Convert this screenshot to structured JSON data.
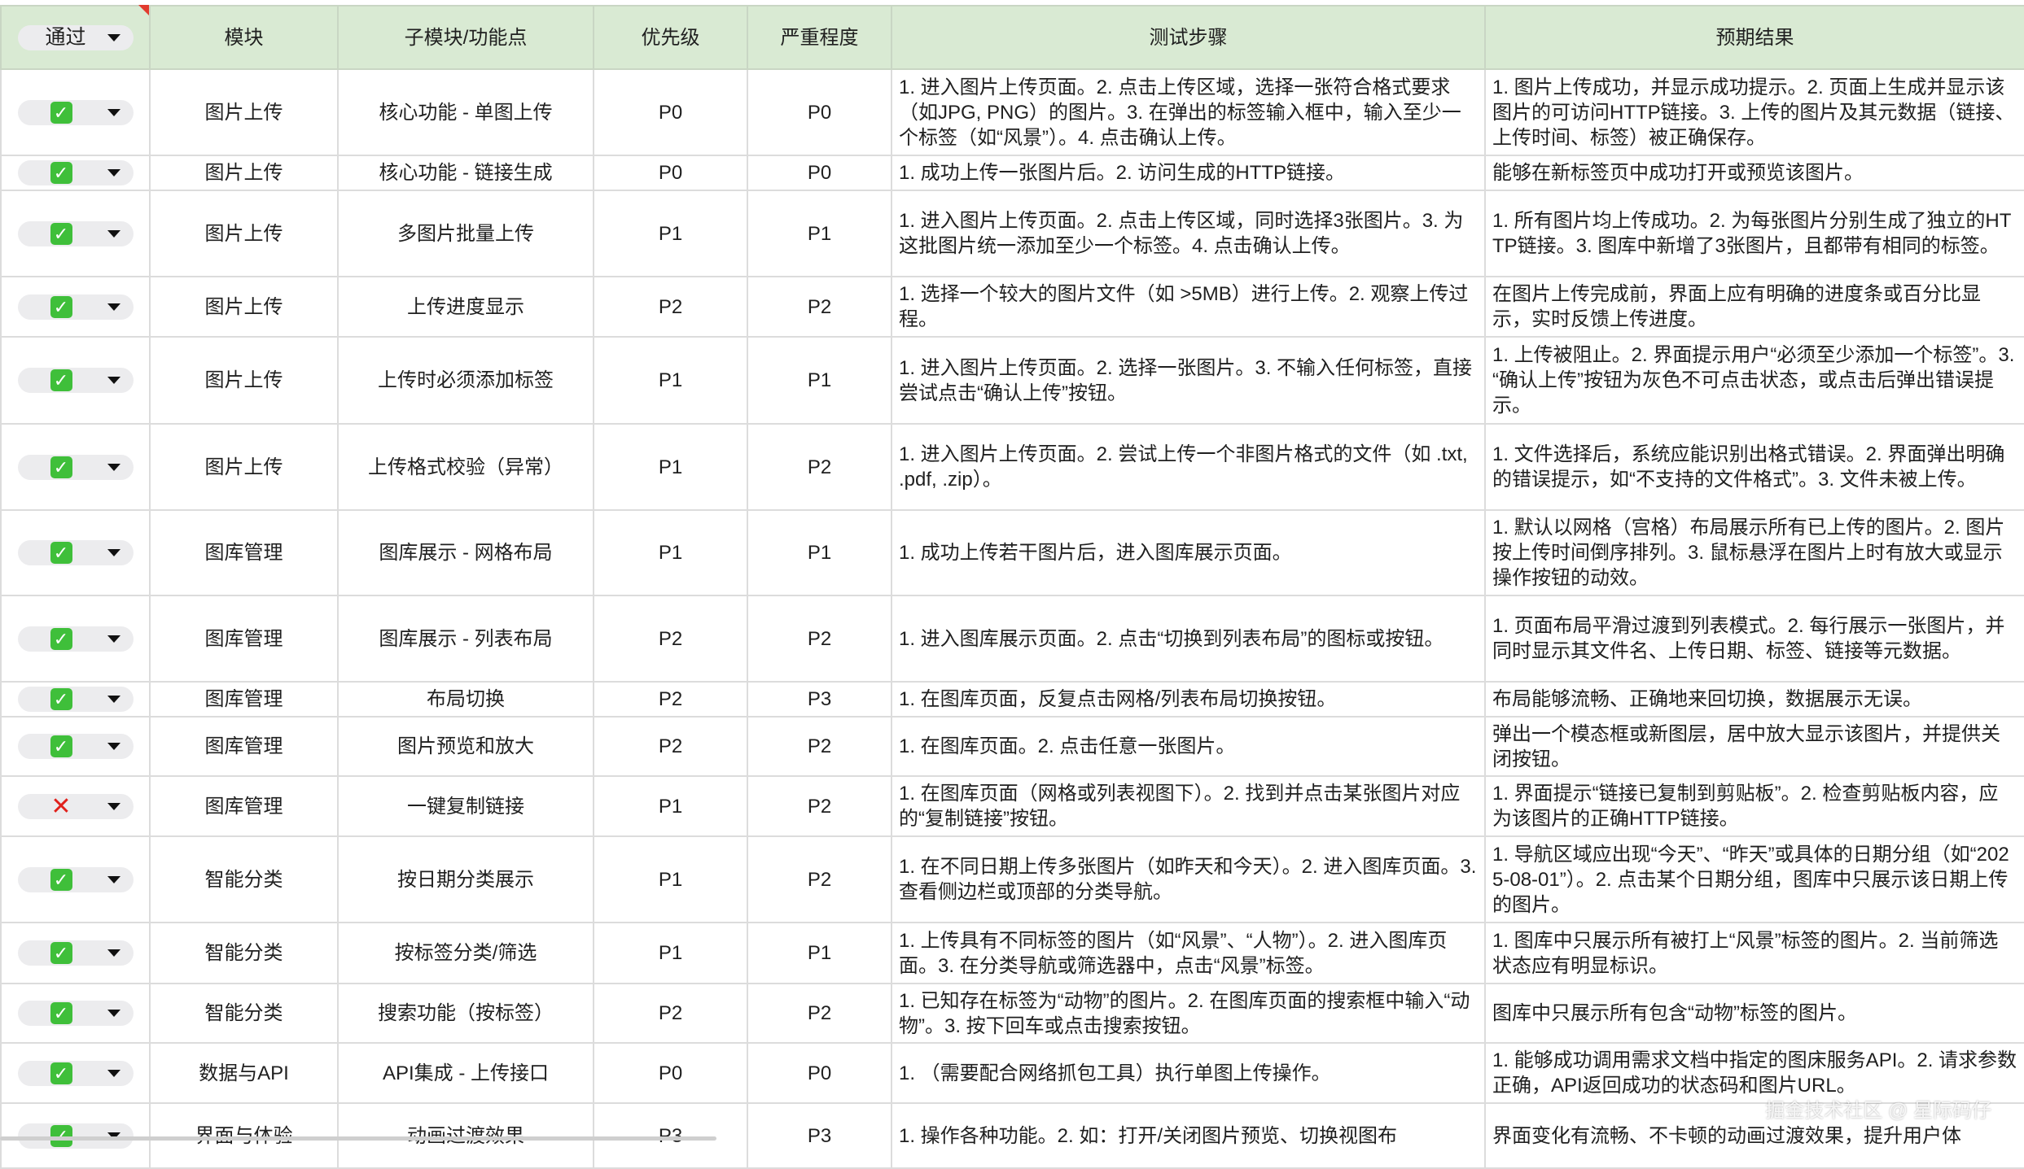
{
  "header": {
    "status_filter": "通过",
    "columns": [
      "模块",
      "子模块/功能点",
      "优先级",
      "严重程度",
      "测试步骤",
      "预期结果"
    ]
  },
  "rows": [
    {
      "status": "pass",
      "module": "图片上传",
      "sub": "核心功能 - 单图上传",
      "priority": "P0",
      "severity": "P0",
      "steps": "1. 进入图片上传页面。2. 点击上传区域，选择一张符合格式要求（如JPG, PNG）的图片。3. 在弹出的标签输入框中，输入至少一个标签（如“风景”）。4. 点击确认上传。",
      "expected": "1. 图片上传成功，并显示成功提示。2. 页面上生成并显示该图片的可访问HTTP链接。3. 上传的图片及其元数据（链接、上传时间、标签）被正确保存。"
    },
    {
      "status": "pass",
      "module": "图片上传",
      "sub": "核心功能 - 链接生成",
      "priority": "P0",
      "severity": "P0",
      "steps": "1. 成功上传一张图片后。2. 访问生成的HTTP链接。",
      "expected": "能够在新标签页中成功打开或预览该图片。"
    },
    {
      "status": "pass",
      "module": "图片上传",
      "sub": "多图片批量上传",
      "priority": "P1",
      "severity": "P1",
      "steps": "1. 进入图片上传页面。2. 点击上传区域，同时选择3张图片。3. 为这批图片统一添加至少一个标签。4. 点击确认上传。",
      "expected": "1. 所有图片均上传成功。2. 为每张图片分别生成了独立的HTTP链接。3. 图库中新增了3张图片，且都带有相同的标签。"
    },
    {
      "status": "pass",
      "module": "图片上传",
      "sub": "上传进度显示",
      "priority": "P2",
      "severity": "P2",
      "steps": "1. 选择一个较大的图片文件（如 >5MB）进行上传。2. 观察上传过程。",
      "expected": "在图片上传完成前，界面上应有明确的进度条或百分比显示，实时反馈上传进度。"
    },
    {
      "status": "pass",
      "module": "图片上传",
      "sub": "上传时必须添加标签",
      "priority": "P1",
      "severity": "P1",
      "steps": "1. 进入图片上传页面。2. 选择一张图片。3. 不输入任何标签，直接尝试点击“确认上传”按钮。",
      "expected": "1. 上传被阻止。2. 界面提示用户“必须至少添加一个标签”。3. “确认上传”按钮为灰色不可点击状态，或点击后弹出错误提示。"
    },
    {
      "status": "pass",
      "module": "图片上传",
      "sub": "上传格式校验（异常）",
      "priority": "P1",
      "severity": "P2",
      "steps": "1. 进入图片上传页面。2. 尝试上传一个非图片格式的文件（如 .txt, .pdf, .zip）。",
      "expected": "1. 文件选择后，系统应能识别出格式错误。2. 界面弹出明确的错误提示，如“不支持的文件格式”。3. 文件未被上传。"
    },
    {
      "status": "pass",
      "module": "图库管理",
      "sub": "图库展示 - 网格布局",
      "priority": "P1",
      "severity": "P1",
      "steps": "1. 成功上传若干图片后，进入图库展示页面。",
      "expected": "1. 默认以网格（宫格）布局展示所有已上传的图片。2. 图片按上传时间倒序排列。3. 鼠标悬浮在图片上时有放大或显示操作按钮的动效。"
    },
    {
      "status": "pass",
      "module": "图库管理",
      "sub": "图库展示 - 列表布局",
      "priority": "P2",
      "severity": "P2",
      "steps": "1. 进入图库展示页面。2. 点击“切换到列表布局”的图标或按钮。",
      "expected": "1. 页面布局平滑过渡到列表模式。2. 每行展示一张图片，并同时显示其文件名、上传日期、标签、链接等元数据。"
    },
    {
      "status": "pass",
      "module": "图库管理",
      "sub": "布局切换",
      "priority": "P2",
      "severity": "P3",
      "steps": "1. 在图库页面，反复点击网格/列表布局切换按钮。",
      "expected": "布局能够流畅、正确地来回切换，数据展示无误。"
    },
    {
      "status": "pass",
      "module": "图库管理",
      "sub": "图片预览和放大",
      "priority": "P2",
      "severity": "P2",
      "steps": "1. 在图库页面。2. 点击任意一张图片。",
      "expected": "弹出一个模态框或新图层，居中放大显示该图片，并提供关闭按钮。"
    },
    {
      "status": "fail",
      "module": "图库管理",
      "sub": "一键复制链接",
      "priority": "P1",
      "severity": "P2",
      "steps": "1. 在图库页面（网格或列表视图下）。2. 找到并点击某张图片对应的“复制链接”按钮。",
      "expected": "1. 界面提示“链接已复制到剪贴板”。2. 检查剪贴板内容，应为该图片的正确HTTP链接。"
    },
    {
      "status": "pass",
      "module": "智能分类",
      "sub": "按日期分类展示",
      "priority": "P1",
      "severity": "P2",
      "steps": "1. 在不同日期上传多张图片（如昨天和今天）。2. 进入图库页面。3. 查看侧边栏或顶部的分类导航。",
      "expected": "1. 导航区域应出现“今天”、“昨天”或具体的日期分组（如“2025-08-01”）。2. 点击某个日期分组，图库中只展示该日期上传的图片。"
    },
    {
      "status": "pass",
      "module": "智能分类",
      "sub": "按标签分类/筛选",
      "priority": "P1",
      "severity": "P1",
      "steps": "1. 上传具有不同标签的图片（如“风景”、“人物”）。2. 进入图库页面。3. 在分类导航或筛选器中，点击“风景”标签。",
      "expected": "1. 图库中只展示所有被打上“风景”标签的图片。2. 当前筛选状态应有明显标识。"
    },
    {
      "status": "pass",
      "module": "智能分类",
      "sub": "搜索功能（按标签）",
      "priority": "P2",
      "severity": "P2",
      "steps": "1. 已知存在标签为“动物”的图片。2. 在图库页面的搜索框中输入“动物”。3. 按下回车或点击搜索按钮。",
      "expected": "图库中只展示所有包含“动物”标签的图片。"
    },
    {
      "status": "pass",
      "module": "数据与API",
      "sub": "API集成 - 上传接口",
      "priority": "P0",
      "severity": "P0",
      "steps": "1. （需要配合网络抓包工具）执行单图上传操作。",
      "expected": "1. 能够成功调用需求文档中指定的图床服务API。2. 请求参数正确，API返回成功的状态码和图片URL。"
    },
    {
      "status": "pass",
      "module": "界面与体验",
      "sub": "动画过渡效果",
      "priority": "P3",
      "severity": "P3",
      "steps": "1. 操作各种功能。2. 如：打开/关闭图片预览、切换视图布",
      "expected": "界面变化有流畅、不卡顿的动画过渡效果，提升用户体"
    }
  ],
  "icons": {
    "pass": "check-mark-button-icon",
    "fail": "cross-mark-icon",
    "dropdown": "caret-down-icon"
  },
  "colors": {
    "header_bg": "#d9ead3",
    "pass": "#3fbf3a",
    "fail": "#e0201b"
  },
  "watermark": "掘金技术社区 @ 星际码仔"
}
